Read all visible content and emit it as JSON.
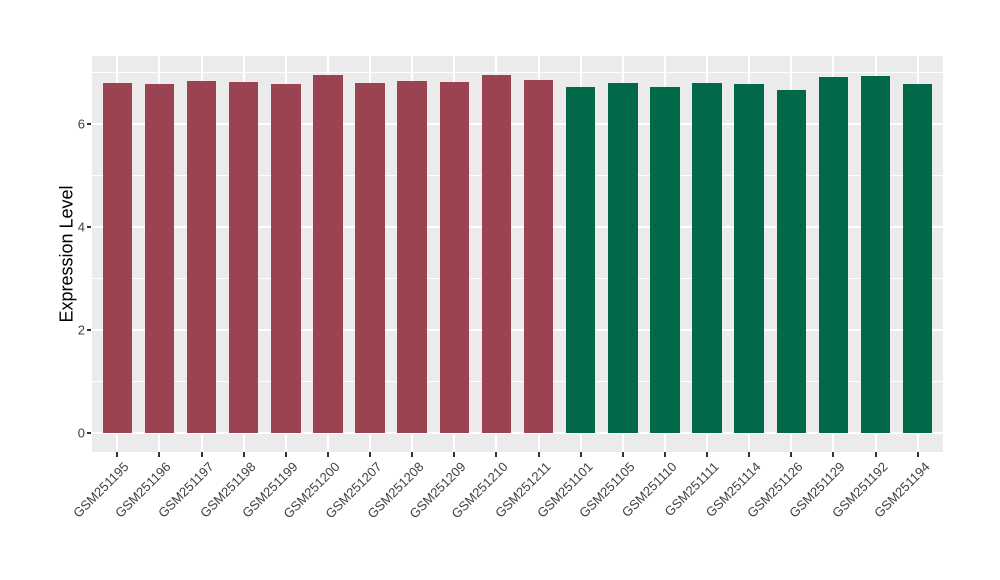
{
  "figure": {
    "background": "#FFFFFF",
    "panel_background": "#EBEBEB",
    "grid_color": "#FFFFFF",
    "axis_text_color": "#404040"
  },
  "chart_data": {
    "type": "bar",
    "title": "",
    "xlabel": "",
    "ylabel": "Expression Level",
    "legend": "none",
    "grid": "on",
    "categories": [
      "GSM251195",
      "GSM251196",
      "GSM251197",
      "GSM251198",
      "GSM251199",
      "GSM251200",
      "GSM251207",
      "GSM251208",
      "GSM251209",
      "GSM251210",
      "GSM251211",
      "GSM251101",
      "GSM251105",
      "GSM251110",
      "GSM251111",
      "GSM251114",
      "GSM251126",
      "GSM251129",
      "GSM251192",
      "GSM251194"
    ],
    "values": [
      6.8,
      6.78,
      6.84,
      6.82,
      6.79,
      6.97,
      6.81,
      6.85,
      6.83,
      6.96,
      6.87,
      6.73,
      6.81,
      6.73,
      6.81,
      6.79,
      6.67,
      6.92,
      6.94,
      6.78
    ],
    "bar_colors": [
      "#9C4351",
      "#9C4351",
      "#9C4351",
      "#9C4351",
      "#9C4351",
      "#9C4351",
      "#9C4351",
      "#9C4351",
      "#9C4351",
      "#9C4351",
      "#9C4351",
      "#016849",
      "#016849",
      "#016849",
      "#016849",
      "#016849",
      "#016849",
      "#016849",
      "#016849",
      "#016849"
    ],
    "group_colors": {
      "maroon_group": "#9C4351",
      "green_group": "#016849"
    },
    "y_ticks": [
      0,
      2,
      4,
      6
    ],
    "y_minor_ticks": [
      1,
      3,
      5,
      7
    ],
    "ylim": [
      -0.37,
      7.33
    ],
    "bar_width_fraction": 0.7
  }
}
